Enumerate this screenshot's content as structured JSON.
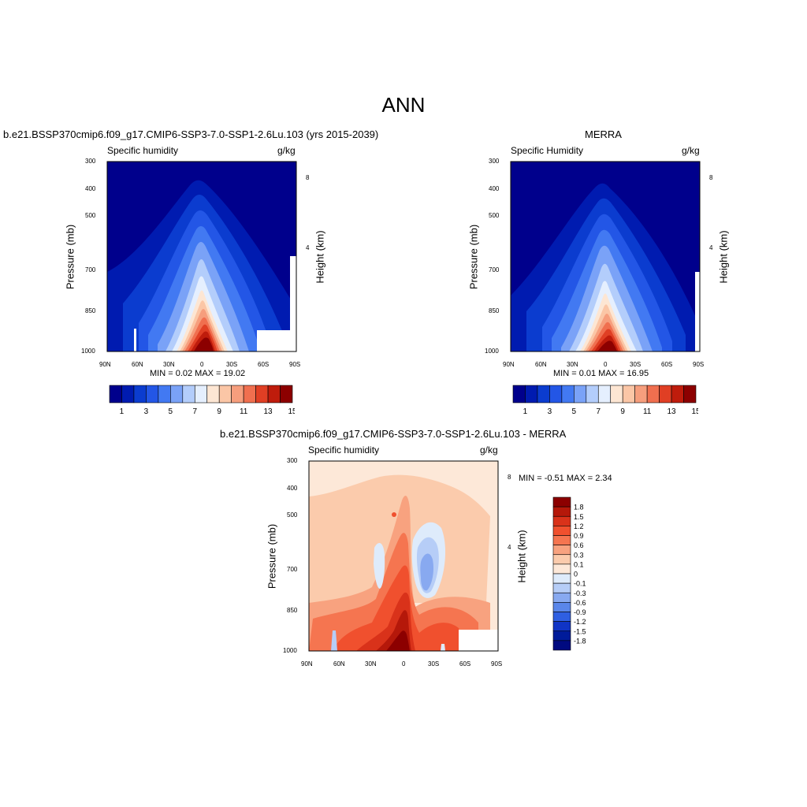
{
  "page_title": "ANN",
  "panels": {
    "model": {
      "title": "b.e21.BSSP370cmip6.f09_g17.CMIP6-SSP3-7.0-SSP1-2.6Lu.103 (yrs 2015-2039)",
      "left_sub": "Specific humidity",
      "right_sub": "g/kg",
      "ylabel": "Pressure (mb)",
      "y2label": "Height (km)",
      "minmax": "MIN =   0.02  MAX =  19.02"
    },
    "obs": {
      "title": "MERRA",
      "left_sub": "Specific Humidity",
      "right_sub": "g/kg",
      "ylabel": "Pressure (mb)",
      "y2label": "Height (km)",
      "minmax": "MIN =   0.01  MAX =  16.95"
    },
    "diff": {
      "title": "b.e21.BSSP370cmip6.f09_g17.CMIP6-SSP3-7.0-SSP1-2.6Lu.103 - MERRA",
      "left_sub": "Specific humidity",
      "right_sub": "g/kg",
      "ylabel": "Pressure (mb)",
      "y2label": "Height (km)",
      "minmax": "MIN =  -0.51  MAX =   2.34"
    }
  },
  "axes": {
    "pressure_ticks": [
      "300",
      "400",
      "500",
      "700",
      "850",
      "1000"
    ],
    "height_ticks": [
      "8",
      "4"
    ],
    "lat_ticks": [
      "90N",
      "60N",
      "30N",
      "0",
      "30S",
      "60S",
      "90S"
    ]
  },
  "colorbars": {
    "abs_labels": [
      "1",
      "3",
      "5",
      "7",
      "9",
      "11",
      "13",
      "15"
    ],
    "abs_colors": [
      "#00008c",
      "#001bb0",
      "#0b3ccf",
      "#2356e6",
      "#4279f2",
      "#7aa2f7",
      "#b3cdfb",
      "#e5effe",
      "#fde6d3",
      "#fbc6a6",
      "#f69e7d",
      "#f06f4f",
      "#e03f24",
      "#bf1c0c",
      "#8c0000"
    ],
    "diff_labels": [
      "1.8",
      "1.5",
      "1.2",
      "0.9",
      "0.6",
      "0.3",
      "0.1",
      "0",
      "-0.1",
      "-0.3",
      "-0.6",
      "-0.9",
      "-1.2",
      "-1.5",
      "-1.8"
    ],
    "diff_colors": [
      "#8c0000",
      "#b5180a",
      "#d9321a",
      "#f0502e",
      "#f57550",
      "#f8a27f",
      "#fbcbac",
      "#fde8d8",
      "#deebfb",
      "#b6cdf7",
      "#88a9f0",
      "#5a86ea",
      "#2f5fe2",
      "#1034c6",
      "#001b9a",
      "#000a80"
    ]
  },
  "chart_data": [
    {
      "type": "heatmap",
      "title": "b.e21.BSSP370cmip6.f09_g17.CMIP6-SSP3-7.0-SSP1-2.6Lu.103 (yrs 2015-2039)",
      "variable": "Specific humidity",
      "units": "g/kg",
      "xlabel": "",
      "ylabel": "Pressure (mb)",
      "y2label": "Height (km)",
      "x_ticks": [
        "90N",
        "60N",
        "30N",
        "0",
        "30S",
        "60S",
        "90S"
      ],
      "y_ticks": [
        300,
        400,
        500,
        700,
        850,
        1000
      ],
      "min": 0.02,
      "max": 19.02,
      "levels": [
        1,
        2,
        3,
        4,
        5,
        6,
        7,
        8,
        9,
        10,
        11,
        12,
        13,
        14,
        15
      ],
      "peak_location": {
        "lat": 0,
        "pressure": 1000
      }
    },
    {
      "type": "heatmap",
      "title": "MERRA",
      "variable": "Specific Humidity",
      "units": "g/kg",
      "xlabel": "",
      "ylabel": "Pressure (mb)",
      "y2label": "Height (km)",
      "x_ticks": [
        "90N",
        "60N",
        "30N",
        "0",
        "30S",
        "60S",
        "90S"
      ],
      "y_ticks": [
        300,
        400,
        500,
        700,
        850,
        1000
      ],
      "min": 0.01,
      "max": 16.95,
      "levels": [
        1,
        2,
        3,
        4,
        5,
        6,
        7,
        8,
        9,
        10,
        11,
        12,
        13,
        14,
        15
      ],
      "peak_location": {
        "lat": 0,
        "pressure": 1000
      }
    },
    {
      "type": "heatmap",
      "title": "b.e21.BSSP370cmip6.f09_g17.CMIP6-SSP3-7.0-SSP1-2.6Lu.103 - MERRA",
      "variable": "Specific humidity",
      "units": "g/kg",
      "xlabel": "",
      "ylabel": "Pressure (mb)",
      "y2label": "Height (km)",
      "x_ticks": [
        "90N",
        "60N",
        "30N",
        "0",
        "30S",
        "60S",
        "90S"
      ],
      "y_ticks": [
        300,
        400,
        500,
        700,
        850,
        1000
      ],
      "min": -0.51,
      "max": 2.34,
      "levels": [
        -1.8,
        -1.5,
        -1.2,
        -0.9,
        -0.6,
        -0.3,
        -0.1,
        0,
        0.1,
        0.3,
        0.6,
        0.9,
        1.2,
        1.5,
        1.8
      ]
    }
  ]
}
